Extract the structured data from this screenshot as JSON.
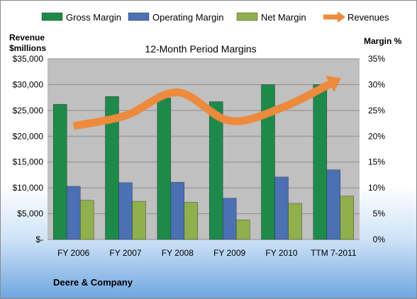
{
  "colors": {
    "gross": "#1e8a4a",
    "operating": "#4a71b3",
    "net": "#8fb04a",
    "revenues": "#ed8a3b",
    "plot_bg": "#c0c0c0"
  },
  "legend": [
    {
      "key": "gross",
      "label": "Gross Margin",
      "icon": "bar-swatch-icon"
    },
    {
      "key": "operating",
      "label": "Operating Margin",
      "icon": "bar-swatch-icon"
    },
    {
      "key": "net",
      "label": "Net Margin",
      "icon": "bar-swatch-icon"
    },
    {
      "key": "revenues",
      "label": "Revenues",
      "icon": "arrow-swatch-icon"
    }
  ],
  "chart_data": {
    "type": "bar",
    "title": "12-Month Period Margins",
    "categories": [
      "FY 2006",
      "FY 2007",
      "FY 2008",
      "FY 2009",
      "FY 2010",
      "TTM 7-2011"
    ],
    "series": [
      {
        "name": "Gross Margin",
        "key": "gross",
        "axis": "right",
        "values": [
          26.2,
          27.7,
          27.4,
          26.7,
          30.0,
          30.0
        ]
      },
      {
        "name": "Operating Margin",
        "key": "operating",
        "axis": "right",
        "values": [
          10.3,
          11.0,
          11.1,
          8.0,
          12.1,
          13.5
        ]
      },
      {
        "name": "Net Margin",
        "key": "net",
        "axis": "right",
        "values": [
          7.6,
          7.4,
          7.2,
          3.8,
          7.0,
          8.4
        ]
      },
      {
        "name": "Revenues",
        "key": "revenues",
        "axis": "left",
        "type": "line",
        "values": [
          22000,
          24000,
          28500,
          23000,
          25500,
          30500
        ]
      }
    ],
    "ylabel_left": "Revenue $millions",
    "ylabel_right": "Margin %",
    "ylim_left": [
      0,
      35000
    ],
    "ylim_right": [
      0,
      35
    ],
    "yticks_left": [
      "$-",
      "$5,000",
      "$10,000",
      "$15,000",
      "$20,000",
      "$25,000",
      "$30,000",
      "$35,000"
    ],
    "yticks_right": [
      "0%",
      "5%",
      "10%",
      "15%",
      "20%",
      "25%",
      "30%",
      "35%"
    ],
    "grid": true,
    "legend_position": "top"
  },
  "ylabel_left_lines": [
    "Revenue",
    "$millions"
  ],
  "company": "Deere & Company"
}
